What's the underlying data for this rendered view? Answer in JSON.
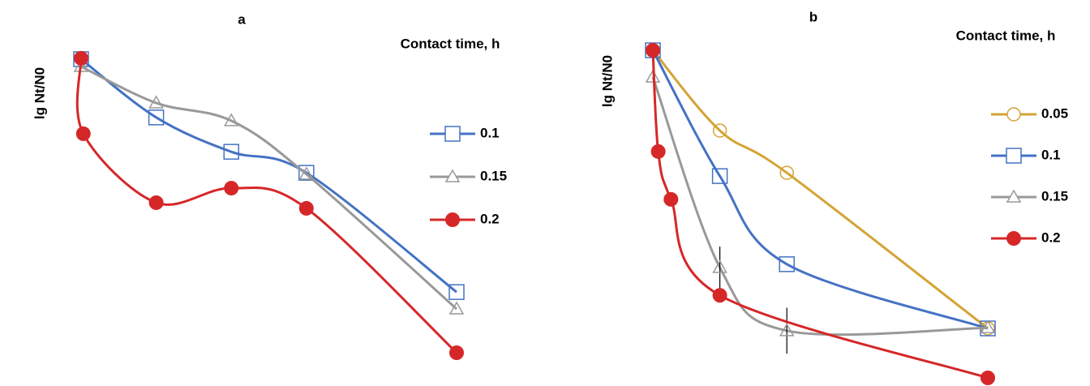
{
  "chart_data": [
    {
      "type": "line",
      "title": "a",
      "y_label": "lg Nt/N0",
      "legend_title": "Contact time, h",
      "xlim": [
        0,
        5
      ],
      "ylim": [
        -10,
        0
      ],
      "series": [
        {
          "name": "0.1",
          "color": "#4472c4",
          "marker": "square",
          "x": [
            0,
            1,
            2,
            3,
            5
          ],
          "values": [
            -0.08,
            -2.05,
            -3.21,
            -3.92,
            -7.95
          ]
        },
        {
          "name": "0.15",
          "color": "#999999",
          "marker": "triangle",
          "x": [
            0,
            1,
            2,
            3,
            5
          ],
          "values": [
            -0.33,
            -1.56,
            -2.16,
            -3.97,
            -8.52
          ]
        },
        {
          "name": "0.2",
          "color": "#d62728",
          "marker": "dot",
          "x": [
            0,
            0.03,
            1,
            2,
            3,
            5
          ],
          "values": [
            -0.05,
            -2.6,
            -4.93,
            -4.44,
            -5.12,
            -10
          ]
        }
      ]
    },
    {
      "type": "line",
      "title": "b",
      "y_label": "lg Nt/N0",
      "legend_title": "Contact time, h",
      "xlim": [
        0,
        5
      ],
      "ylim": [
        -10,
        0
      ],
      "series": [
        {
          "name": "0.05",
          "color": "#d4a334",
          "marker": "circle",
          "x": [
            0,
            1,
            2,
            5
          ],
          "values": [
            0,
            -2.45,
            -3.74,
            -8.49
          ]
        },
        {
          "name": "0.1",
          "color": "#4472c4",
          "marker": "square",
          "x": [
            0,
            1,
            2,
            5
          ],
          "values": [
            0,
            -3.84,
            -6.53,
            -8.49
          ]
        },
        {
          "name": "0.15",
          "color": "#999999",
          "marker": "triangle",
          "x": [
            0,
            1,
            2,
            5
          ],
          "values": [
            -0.82,
            -6.63,
            -8.56,
            -8.47
          ],
          "errors": [
            null,
            0.64,
            0.7,
            null
          ]
        },
        {
          "name": "0.2",
          "color": "#d62728",
          "marker": "dot",
          "x": [
            0,
            0.08,
            0.27,
            1,
            5
          ],
          "values": [
            0,
            -3.09,
            -4.55,
            -7.48,
            -10
          ]
        }
      ]
    }
  ]
}
